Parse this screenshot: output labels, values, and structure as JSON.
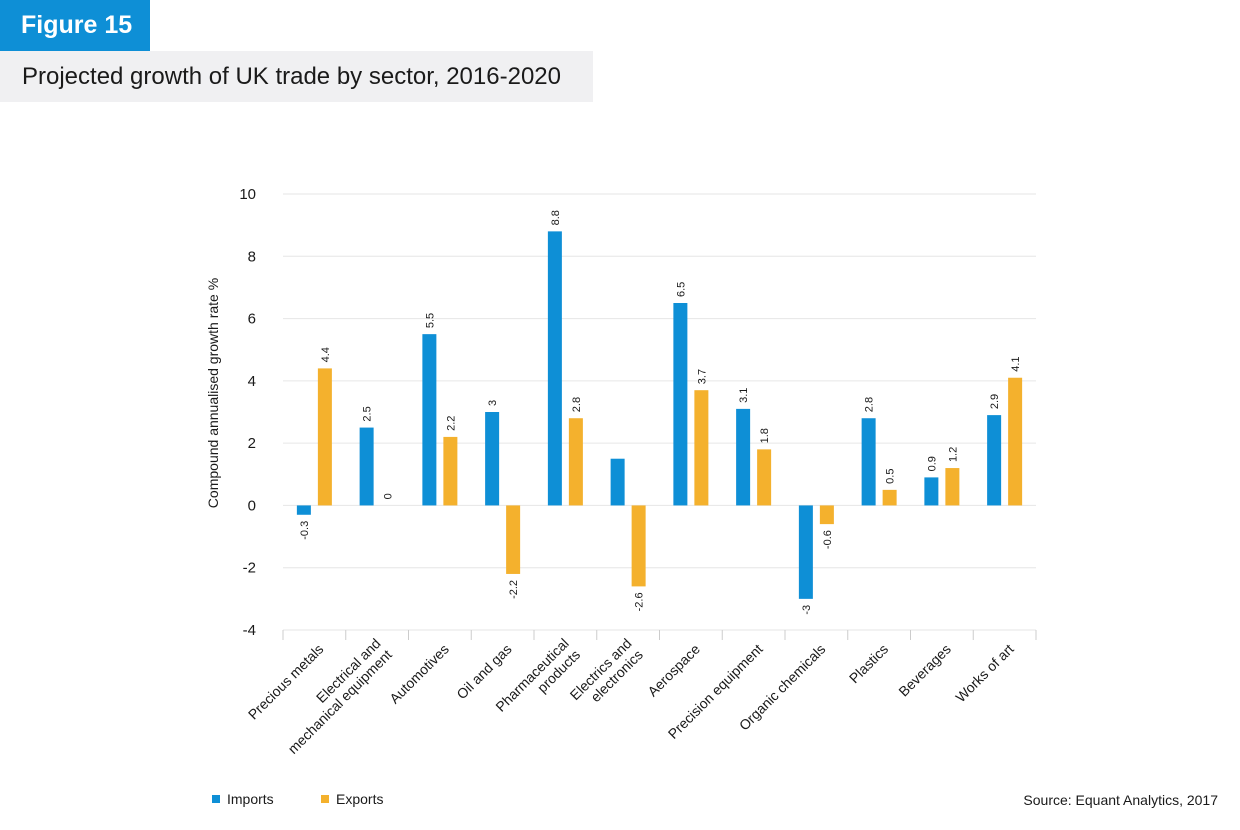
{
  "figure": {
    "label": "Figure 15",
    "title": "Projected growth of UK trade by sector, 2016-2020"
  },
  "source": "Source: Equant Analytics, 2017",
  "colors": {
    "imports": "#0e8fd6",
    "exports": "#f4b12d",
    "grid": "#e6e6e6",
    "axis": "#cccccc"
  },
  "chart_data": {
    "type": "bar",
    "title": "",
    "xlabel": "",
    "ylabel": "Compound annualised growth rate %",
    "ylim": [
      -4,
      10
    ],
    "yticks": [
      -4,
      -2,
      0,
      2,
      4,
      6,
      8,
      10
    ],
    "grid": true,
    "legend_position": "bottom-left",
    "categories": [
      [
        "Precious metals"
      ],
      [
        "Electrical and",
        "mechanical equipment"
      ],
      [
        "Automotives"
      ],
      [
        "Oil and gas"
      ],
      [
        "Pharmaceutical",
        "products"
      ],
      [
        "Electrics and",
        "electronics"
      ],
      [
        "Aerospace"
      ],
      [
        "Precision equipment"
      ],
      [
        "Organic chemicals"
      ],
      [
        "Plastics"
      ],
      [
        "Beverages"
      ],
      [
        "Works of art"
      ]
    ],
    "series": [
      {
        "name": "Imports",
        "values": [
          -0.3,
          2.5,
          5.5,
          3,
          8.8,
          1.5,
          6.5,
          3.1,
          -3,
          2.8,
          0.9,
          2.9
        ],
        "labels": [
          "-0.3",
          "2.5",
          "5.5",
          "3",
          "8.8",
          null,
          "6.5",
          "3.1",
          "-3",
          "2.8",
          "0.9",
          "2.9"
        ]
      },
      {
        "name": "Exports",
        "values": [
          4.4,
          0,
          2.2,
          -2.2,
          2.8,
          -2.6,
          3.7,
          1.8,
          -0.6,
          0.5,
          1.2,
          4.1
        ],
        "labels": [
          "4.4",
          "0",
          "2.2",
          "-2.2",
          "2.8",
          "-2.6",
          "3.7",
          "1.8",
          "-0.6",
          "0.5",
          "1.2",
          "4.1"
        ]
      }
    ]
  }
}
